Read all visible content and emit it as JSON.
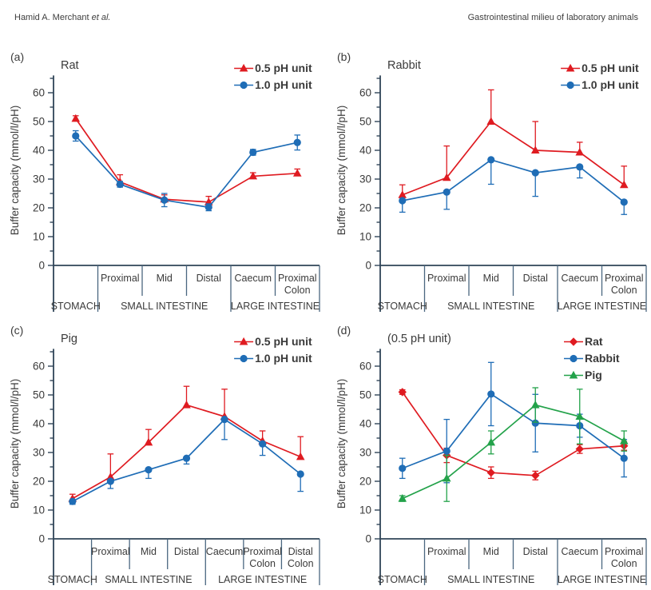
{
  "page": {
    "header_left_main": "Hamid A. Merchant ",
    "header_left_italic": "et al.",
    "header_right": "Gastrointestinal milieu of laboratory animals"
  },
  "colors": {
    "red": "#df1b21",
    "blue": "#1f6db6",
    "green": "#23a24a"
  },
  "ylabel": "Buffer capacity (mmol/l/pH)",
  "chart_data": [
    {
      "type": "line",
      "panel": "(a)",
      "title": "Rat",
      "ylabel": "Buffer capacity (mmol/l/pH)",
      "ylim": [
        0,
        66
      ],
      "yticks": [
        0,
        10,
        20,
        30,
        40,
        50,
        60
      ],
      "grid": false,
      "legend_position": "top-right",
      "categories": [
        "",
        "Proximal",
        "Mid",
        "Distal",
        "Caecum",
        "Proximal\nColon"
      ],
      "groups": [
        {
          "label": "STOMACH",
          "span": [
            0,
            0
          ]
        },
        {
          "label": "SMALL INTESTINE",
          "span": [
            1,
            3
          ]
        },
        {
          "label": "LARGE INTESTINE",
          "span": [
            4,
            5
          ]
        }
      ],
      "series": [
        {
          "name": "0.5 pH unit",
          "color": "red",
          "marker": "triangle",
          "errDir": "up",
          "values": [
            51,
            29,
            23,
            22,
            31,
            32
          ],
          "err": [
            1,
            2.5,
            1.5,
            2,
            1.2,
            1.5
          ]
        },
        {
          "name": "1.0 pH unit",
          "color": "blue",
          "marker": "circle",
          "errDir": "both",
          "values": [
            45,
            28.2,
            22.7,
            20.2,
            39.3,
            42.7
          ],
          "err": [
            1.8,
            1,
            2.3,
            1.2,
            1,
            2.6
          ]
        }
      ]
    },
    {
      "type": "line",
      "panel": "(b)",
      "title": "Rabbit",
      "ylabel": "Buffer capacity (mmol/l/pH)",
      "ylim": [
        0,
        66
      ],
      "yticks": [
        0,
        10,
        20,
        30,
        40,
        50,
        60
      ],
      "grid": false,
      "legend_position": "top-right",
      "categories": [
        "",
        "Proximal",
        "Mid",
        "Distal",
        "Caecum",
        "Proximal\nColon"
      ],
      "groups": [
        {
          "label": "STOMACH",
          "span": [
            0,
            0
          ]
        },
        {
          "label": "SMALL INTESTINE",
          "span": [
            1,
            3
          ]
        },
        {
          "label": "LARGE INTESTINE",
          "span": [
            4,
            5
          ]
        }
      ],
      "series": [
        {
          "name": "0.5 pH unit",
          "color": "red",
          "marker": "triangle",
          "errDir": "up",
          "values": [
            24.5,
            30.5,
            50,
            40,
            39.3,
            28
          ],
          "err": [
            3.5,
            11,
            11,
            10,
            3.5,
            6.5
          ]
        },
        {
          "name": "1.0 pH unit",
          "color": "blue",
          "marker": "circle",
          "errDir": "down",
          "values": [
            22.5,
            25.5,
            36.7,
            32.2,
            34.2,
            22
          ],
          "err": [
            4,
            6,
            8.5,
            8.2,
            3.8,
            4.3
          ]
        }
      ]
    },
    {
      "type": "line",
      "panel": "(c)",
      "title": "Pig",
      "ylabel": "Buffer capacity (mmol/l/pH)",
      "ylim": [
        0,
        66
      ],
      "yticks": [
        0,
        10,
        20,
        30,
        40,
        50,
        60
      ],
      "grid": false,
      "legend_position": "top-right",
      "categories": [
        "",
        "Proximal",
        "Mid",
        "Distal",
        "Caecum",
        "Proximal\nColon",
        "Distal\nColon"
      ],
      "groups": [
        {
          "label": "STOMACH",
          "span": [
            0,
            0
          ]
        },
        {
          "label": "SMALL INTESTINE",
          "span": [
            1,
            3
          ]
        },
        {
          "label": "LARGE INTESTINE",
          "span": [
            4,
            6
          ]
        }
      ],
      "series": [
        {
          "name": "0.5 pH unit",
          "color": "red",
          "marker": "triangle",
          "errDir": "up",
          "values": [
            14,
            21.5,
            33.5,
            46.5,
            42.5,
            34,
            28.5
          ],
          "err": [
            1.5,
            8,
            4.5,
            6.5,
            9.5,
            3.5,
            7
          ]
        },
        {
          "name": "1.0 pH unit",
          "color": "blue",
          "marker": "circle",
          "errDir": "down",
          "values": [
            13,
            20,
            24,
            28,
            41.5,
            33,
            22.5
          ],
          "err": [
            1,
            2.5,
            3,
            2,
            7,
            4,
            6
          ]
        }
      ]
    },
    {
      "type": "line",
      "panel": "(d)",
      "title": "(0.5 pH unit)",
      "ylabel": "Buffer capacity (mmol/l/pH)",
      "ylim": [
        0,
        66
      ],
      "yticks": [
        0,
        10,
        20,
        30,
        40,
        50,
        60
      ],
      "grid": false,
      "legend_position": "top-right",
      "categories": [
        "",
        "Proximal",
        "Mid",
        "Distal",
        "Caecum",
        "Proximal\nColon"
      ],
      "groups": [
        {
          "label": "STOMACH",
          "span": [
            0,
            0
          ]
        },
        {
          "label": "SMALL INTESTINE",
          "span": [
            1,
            3
          ]
        },
        {
          "label": "LARGE INTESTINE",
          "span": [
            4,
            5
          ]
        }
      ],
      "series": [
        {
          "name": "Rat",
          "color": "red",
          "marker": "diamond",
          "errDir": "both",
          "values": [
            51,
            29,
            23,
            22,
            31.2,
            32.3
          ],
          "err": [
            0.8,
            2.5,
            2,
            1.5,
            1.5,
            1.5
          ]
        },
        {
          "name": "Rabbit",
          "color": "blue",
          "marker": "circle",
          "errDir": "both",
          "values": [
            24.5,
            30.5,
            50.3,
            40.2,
            39.3,
            28
          ],
          "err": [
            3.5,
            11,
            11,
            10,
            4,
            6.5
          ]
        },
        {
          "name": "Pig",
          "color": "green",
          "marker": "triangle",
          "errDir": "both",
          "values": [
            14,
            21,
            33.5,
            46.5,
            42.5,
            34
          ],
          "err": [
            1,
            8,
            4,
            6,
            9.5,
            3.5
          ]
        }
      ]
    }
  ]
}
